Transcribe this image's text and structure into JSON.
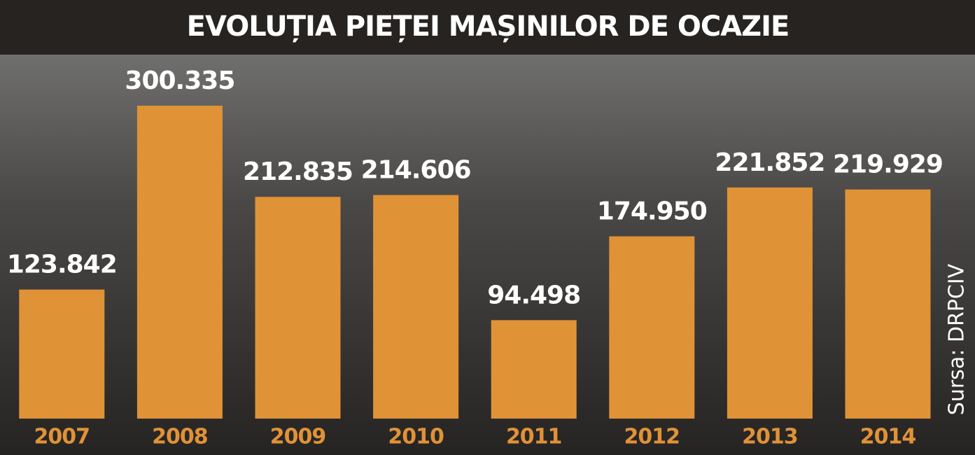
{
  "chart_data": {
    "type": "bar",
    "title": "EVOLUȚIA PIEȚEI MAȘINILOR DE OCAZIE",
    "categories": [
      "2007",
      "2008",
      "2009",
      "2010",
      "2011",
      "2012",
      "2013",
      "2014"
    ],
    "values": [
      123842,
      300335,
      212835,
      214606,
      94498,
      174950,
      221852,
      219929
    ],
    "value_labels": [
      "123.842",
      "300.335",
      "212.835",
      "214.606",
      "94.498",
      "174.950",
      "221.852",
      "219.929"
    ],
    "color": "#e09237",
    "source": "Sursa: DRPCIV"
  }
}
